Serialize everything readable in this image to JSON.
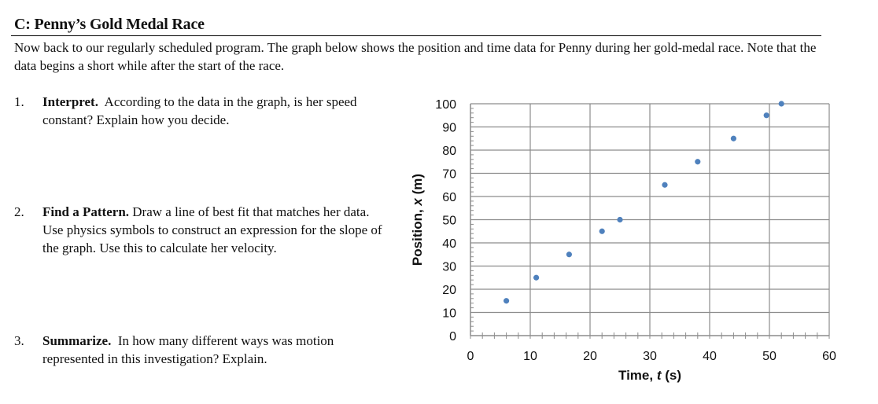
{
  "section": {
    "heading": "C: Penny’s Gold Medal Race",
    "intro": "Now back to our regularly scheduled program. The graph below shows the position and time data for Penny during her gold-medal race. Note that the data begins a short while after the start of the race."
  },
  "questions": [
    {
      "number": "1.",
      "title": "Interpret.",
      "text": "According to the data in the graph, is her speed constant? Explain how you decide."
    },
    {
      "number": "2.",
      "title": "Find a Pattern.",
      "text": "Draw a line of best fit that matches her data. Use physics symbols to construct an expression for the slope of the graph. Use this to calculate her velocity."
    },
    {
      "number": "3.",
      "title": "Summarize.",
      "text": "In how many different ways was motion represented in this investigation? Explain."
    }
  ],
  "chart_data": {
    "type": "scatter",
    "xlabel_prefix": "Time, ",
    "xlabel_var": "t",
    "xlabel_suffix": " (s)",
    "ylabel_prefix": "Position, ",
    "ylabel_var": "x",
    "ylabel_suffix": " (m)",
    "xlim": [
      0,
      60
    ],
    "ylim": [
      0,
      100
    ],
    "x_ticks": [
      0,
      10,
      20,
      30,
      40,
      50,
      60
    ],
    "y_ticks": [
      0,
      10,
      20,
      30,
      40,
      50,
      60,
      70,
      80,
      90,
      100
    ],
    "grid": true,
    "marker_color": "#4f81bd",
    "points": [
      {
        "x": 6,
        "y": 15
      },
      {
        "x": 11,
        "y": 25
      },
      {
        "x": 16.5,
        "y": 35
      },
      {
        "x": 22,
        "y": 45
      },
      {
        "x": 25,
        "y": 50
      },
      {
        "x": 32.5,
        "y": 65
      },
      {
        "x": 38,
        "y": 75
      },
      {
        "x": 44,
        "y": 85
      },
      {
        "x": 49.5,
        "y": 95
      },
      {
        "x": 52,
        "y": 100
      }
    ]
  }
}
